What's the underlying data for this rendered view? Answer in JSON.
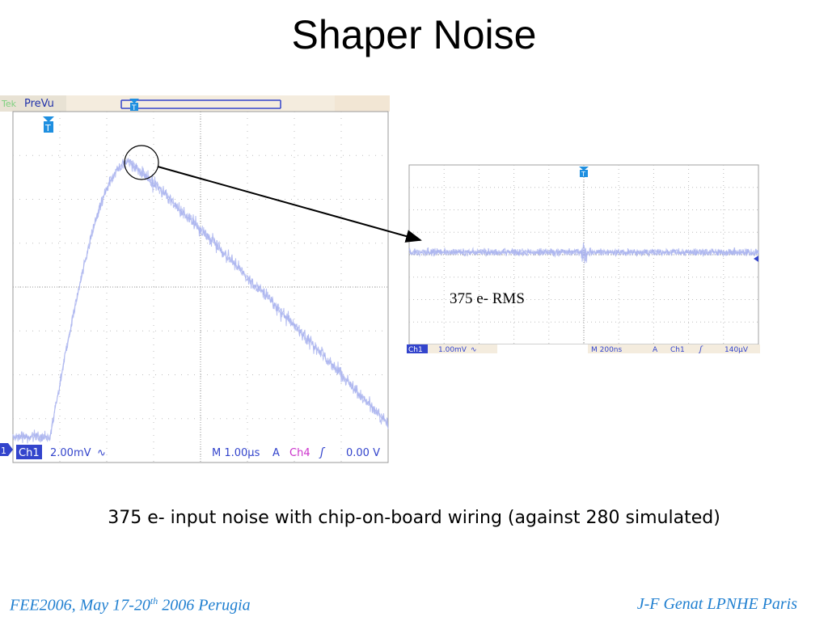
{
  "slide": {
    "title": "Shaper Noise",
    "caption": "375 e- input noise with chip-on-board wiring (against 280 simulated)",
    "rms_label": "375 e- RMS",
    "footer_left_main": "FEE2006, May 17-20",
    "footer_left_sup": "th",
    "footer_left_tail": " 2006 Perugia",
    "footer_right": "J-F Genat LPNHE Paris"
  },
  "scope_main": {
    "top_left_tag": "Tek",
    "mode": "PreVu",
    "trigger_marker": "T",
    "channel_marker": "1",
    "channel": "Ch1",
    "volts_per_div": "2.00mV",
    "coupling_symbol": "∿",
    "timebase": "M 1.00µs",
    "trigger_mode": "A",
    "trigger_source": "Ch4",
    "trigger_slope": "ʃ",
    "trigger_level": "0.00 V",
    "colors": {
      "trace": "#a8b2ee",
      "channel_badge": "#3344cc",
      "trigger_source": "#cc33cc",
      "marker": "#1e8fe0"
    }
  },
  "scope_zoom": {
    "trigger_marker": "T",
    "channel": "Ch1",
    "volts_per_div": "1.00mV",
    "coupling_symbol": "∿",
    "timebase": "M 200ns",
    "trigger_mode": "A",
    "trigger_source": "Ch1",
    "trigger_slope": "ʃ",
    "trigger_level": "140µV",
    "colors": {
      "trace": "#a8b2ee",
      "channel_badge": "#3344cc",
      "marker": "#1e8fe0"
    }
  }
}
